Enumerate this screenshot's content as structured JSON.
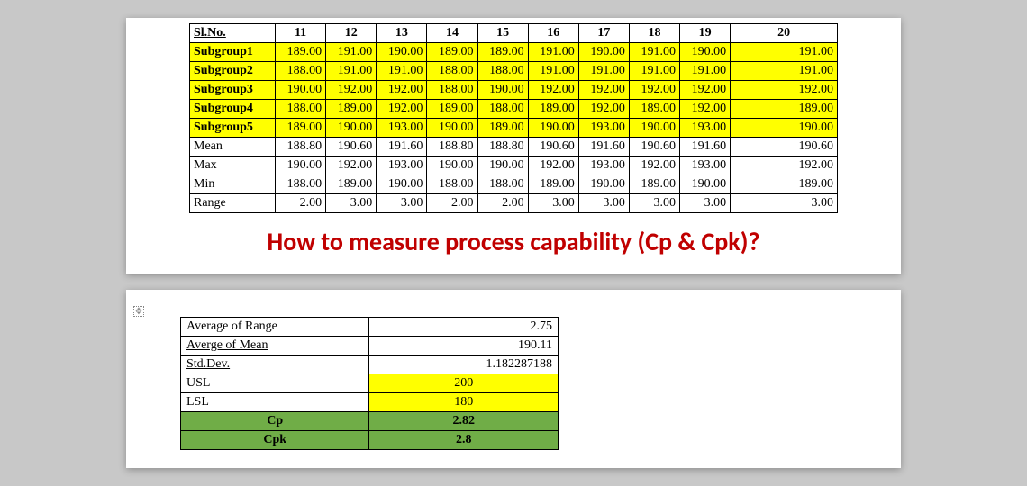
{
  "table1": {
    "headers": [
      "Sl.No.",
      "11",
      "12",
      "13",
      "14",
      "15",
      "16",
      "17",
      "18",
      "19",
      "20"
    ],
    "rows": [
      {
        "label": "Subgroup1",
        "yellow": true,
        "vals": [
          "189.00",
          "191.00",
          "190.00",
          "189.00",
          "189.00",
          "191.00",
          "190.00",
          "191.00",
          "190.00",
          "191.00"
        ]
      },
      {
        "label": "Subgroup2",
        "yellow": true,
        "vals": [
          "188.00",
          "191.00",
          "191.00",
          "188.00",
          "188.00",
          "191.00",
          "191.00",
          "191.00",
          "191.00",
          "191.00"
        ]
      },
      {
        "label": "Subgroup3",
        "yellow": true,
        "vals": [
          "190.00",
          "192.00",
          "192.00",
          "188.00",
          "190.00",
          "192.00",
          "192.00",
          "192.00",
          "192.00",
          "192.00"
        ]
      },
      {
        "label": "Subgroup4",
        "yellow": true,
        "vals": [
          "188.00",
          "189.00",
          "192.00",
          "189.00",
          "188.00",
          "189.00",
          "192.00",
          "189.00",
          "192.00",
          "189.00"
        ]
      },
      {
        "label": "Subgroup5",
        "yellow": true,
        "vals": [
          "189.00",
          "190.00",
          "193.00",
          "190.00",
          "189.00",
          "190.00",
          "193.00",
          "190.00",
          "193.00",
          "190.00"
        ]
      },
      {
        "label": "Mean",
        "yellow": false,
        "vals": [
          "188.80",
          "190.60",
          "191.60",
          "188.80",
          "188.80",
          "190.60",
          "191.60",
          "190.60",
          "191.60",
          "190.60"
        ]
      },
      {
        "label": "Max",
        "yellow": false,
        "vals": [
          "190.00",
          "192.00",
          "193.00",
          "190.00",
          "190.00",
          "192.00",
          "193.00",
          "192.00",
          "193.00",
          "192.00"
        ]
      },
      {
        "label": "Min",
        "yellow": false,
        "vals": [
          "188.00",
          "189.00",
          "190.00",
          "188.00",
          "188.00",
          "189.00",
          "190.00",
          "189.00",
          "190.00",
          "189.00"
        ]
      },
      {
        "label": "Range",
        "yellow": false,
        "vals": [
          "2.00",
          "3.00",
          "3.00",
          "2.00",
          "2.00",
          "3.00",
          "3.00",
          "3.00",
          "3.00",
          "3.00"
        ]
      }
    ]
  },
  "headline": "How to measure process capability (Cp & Cpk)?",
  "summary": {
    "rows": [
      {
        "label": "Average of Range",
        "ul": false,
        "val": "2.75",
        "align": "right",
        "yellow": false,
        "green": false,
        "bold": false
      },
      {
        "label": "Averge of Mean",
        "ul": true,
        "val": "190.11",
        "align": "right",
        "yellow": false,
        "green": false,
        "bold": false
      },
      {
        "label": "Std.Dev.",
        "ul": true,
        "val": "1.182287188",
        "align": "right",
        "yellow": false,
        "green": false,
        "bold": false
      },
      {
        "label": "USL",
        "ul": false,
        "val": "200",
        "align": "center",
        "yellow": true,
        "green": false,
        "bold": false
      },
      {
        "label": "LSL",
        "ul": false,
        "val": "180",
        "align": "center",
        "yellow": true,
        "green": false,
        "bold": false
      },
      {
        "label": "Cp",
        "ul": false,
        "val": "2.82",
        "align": "center",
        "yellow": false,
        "green": true,
        "bold": true
      },
      {
        "label": "Cpk",
        "ul": false,
        "val": "2.8",
        "align": "center",
        "yellow": false,
        "green": true,
        "bold": true
      }
    ]
  },
  "anchor_glyph": "✥"
}
